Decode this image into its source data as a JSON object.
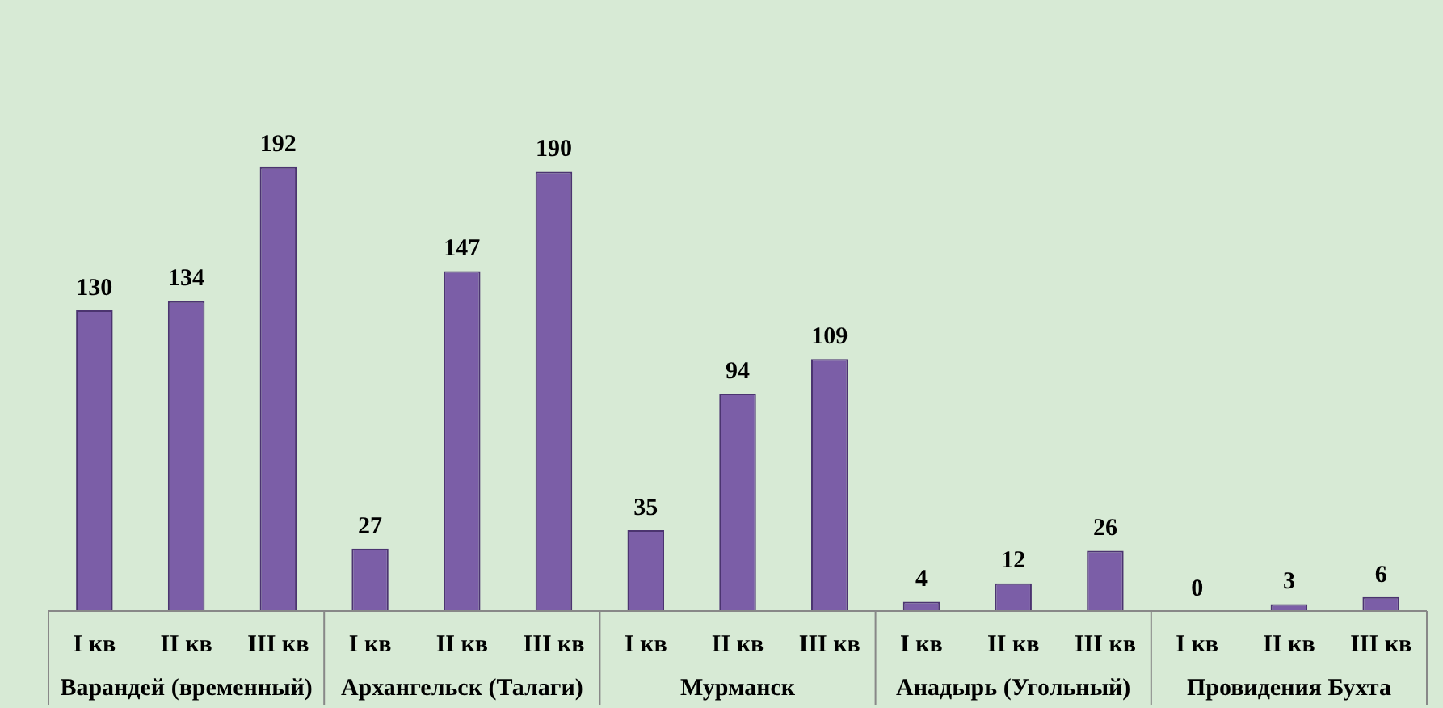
{
  "chart_data": {
    "type": "bar",
    "categories": [
      "I кв",
      "II кв",
      "III кв",
      "I кв",
      "II кв",
      "III кв",
      "I кв",
      "II кв",
      "III кв",
      "I кв",
      "II кв",
      "III кв",
      "I кв",
      "II кв",
      "III кв"
    ],
    "values": [
      130,
      134,
      192,
      27,
      147,
      190,
      35,
      94,
      109,
      4,
      12,
      26,
      0,
      3,
      6
    ],
    "color": "#7b5ea7",
    "data_labels": true,
    "annotations": [
      "Варандей (временный)",
      "Архангельск (Талаги)",
      "Мурманск",
      "Анадырь (Угольный)",
      "Провидения Бухта"
    ]
  }
}
